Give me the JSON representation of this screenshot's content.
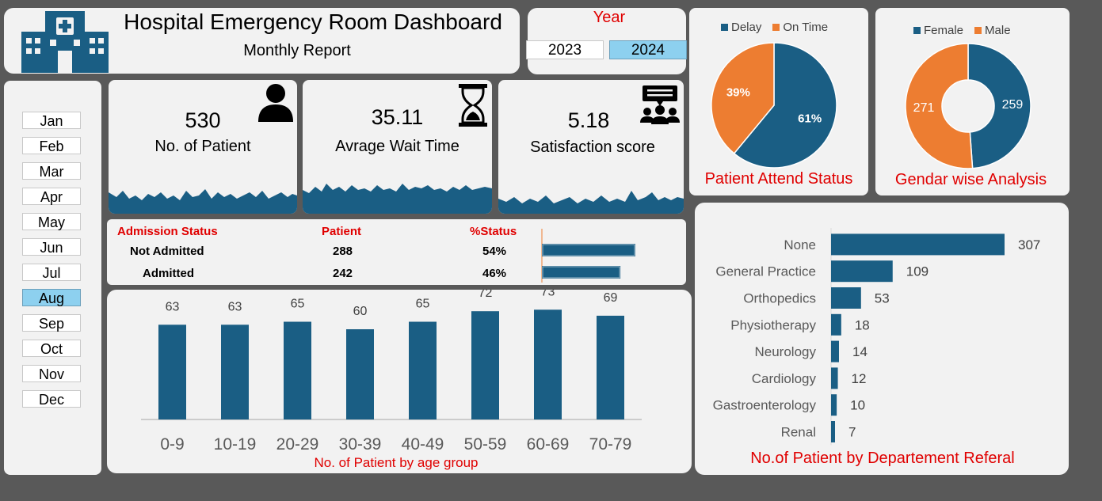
{
  "header": {
    "title": "Hospital Emergency Room Dashboard",
    "subtitle": "Monthly Report",
    "logo_icon": "hospital-icon"
  },
  "year_filter": {
    "label": "Year",
    "options": [
      "2023",
      "2024"
    ],
    "selected": "2024"
  },
  "months": {
    "items": [
      "Jan",
      "Feb",
      "Mar",
      "Apr",
      "May",
      "Jun",
      "Jul",
      "Aug",
      "Sep",
      "Oct",
      "Nov",
      "Dec"
    ],
    "selected": "Aug"
  },
  "kpis": [
    {
      "value": "530",
      "label": "No. of Patient",
      "icon": "person-icon"
    },
    {
      "value": "35.11",
      "label": "Avrage Wait Time",
      "icon": "hourglass-icon"
    },
    {
      "value": "5.18",
      "label": "Satisfaction score",
      "icon": "group-feedback-icon"
    }
  ],
  "admission": {
    "headers": [
      "Admission Status",
      "Patient",
      "%Status"
    ],
    "rows": [
      {
        "status": "Not Admitted",
        "patient": "288",
        "pct": "54%"
      },
      {
        "status": "Admitted",
        "patient": "242",
        "pct": "46%"
      }
    ]
  },
  "colors": {
    "primary": "#1a5e84",
    "accent": "#ed7d31",
    "title_red": "#e00000",
    "slicer_selected": "#8dd0ef"
  },
  "chart_data": [
    {
      "type": "pie",
      "title": "Patient Attend Status",
      "legend": "top",
      "labels": [
        "Delay",
        "On Time"
      ],
      "values": [
        61,
        39
      ],
      "data_labels": [
        "61%",
        "39%"
      ],
      "colors": [
        "#1a5e84",
        "#ed7d31"
      ]
    },
    {
      "type": "pie",
      "title": "Gendar wise Analysis",
      "legend": "top",
      "donut": true,
      "labels": [
        "Female",
        "Male"
      ],
      "values": [
        259,
        271
      ],
      "data_labels": [
        "259",
        "271"
      ],
      "colors": [
        "#1a5e84",
        "#ed7d31"
      ]
    },
    {
      "type": "bar",
      "title": "No. of Patient by age group",
      "categories": [
        "0-9",
        "10-19",
        "20-29",
        "30-39",
        "40-49",
        "50-59",
        "60-69",
        "70-79"
      ],
      "values": [
        63,
        63,
        65,
        60,
        65,
        72,
        73,
        69
      ],
      "ylim": [
        0,
        80
      ],
      "grid": false
    },
    {
      "type": "bar",
      "orientation": "horizontal",
      "title": "No.of Patient by Departement Referal",
      "categories": [
        "None",
        "General Practice",
        "Orthopedics",
        "Physiotherapy",
        "Neurology",
        "Cardiology",
        "Gastroenterology",
        "Renal"
      ],
      "values": [
        307,
        109,
        53,
        18,
        14,
        12,
        10,
        7
      ],
      "grid": false
    },
    {
      "type": "bar",
      "orientation": "horizontal",
      "title": "",
      "categories": [
        "Not Admitted",
        "Admitted"
      ],
      "values": [
        288,
        242
      ]
    }
  ]
}
